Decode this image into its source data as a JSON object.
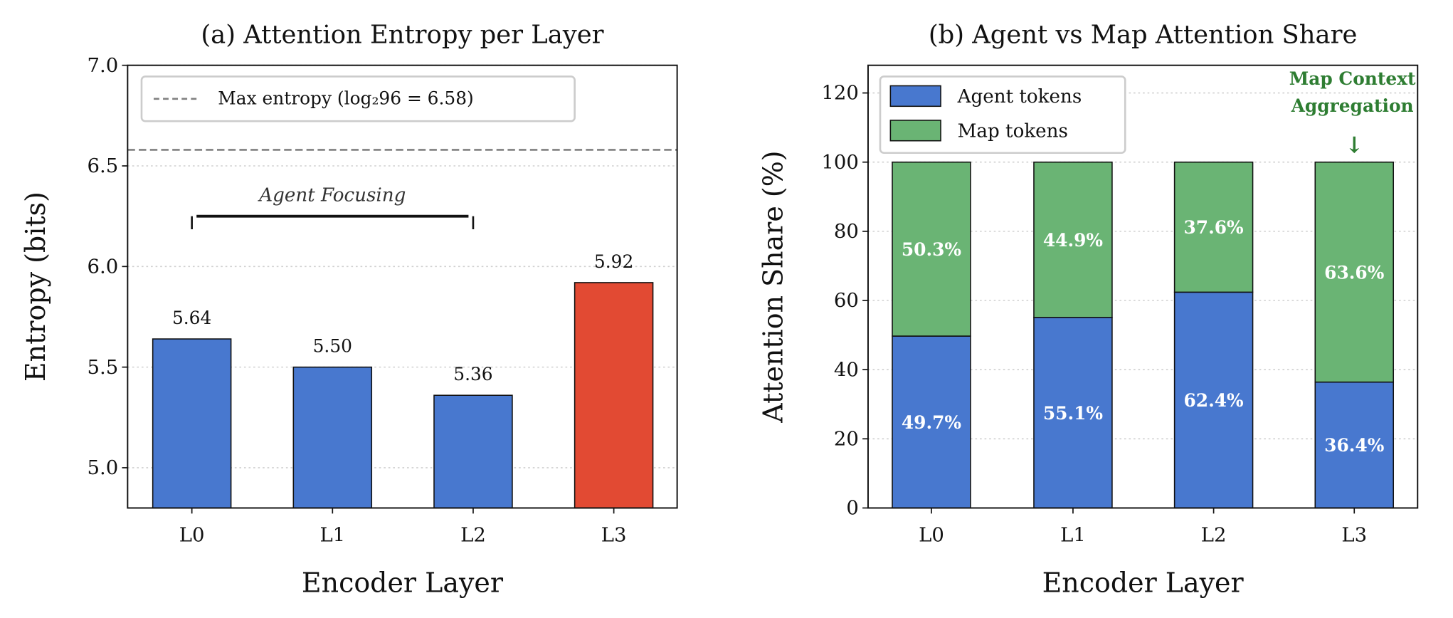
{
  "chart_data": [
    {
      "type": "bar",
      "title": "(a) Attention Entropy per Layer",
      "xlabel": "Encoder Layer",
      "ylabel": "Entropy (bits)",
      "categories": [
        "L0",
        "L1",
        "L2",
        "L3"
      ],
      "values": [
        5.64,
        5.5,
        5.36,
        5.92
      ],
      "data_labels": [
        "5.64",
        "5.50",
        "5.36",
        "5.92"
      ],
      "bar_colors": [
        "#4878cf",
        "#4878cf",
        "#4878cf",
        "#e24a33"
      ],
      "ylim": [
        4.8,
        7.0
      ],
      "yticks": [
        5.0,
        5.5,
        6.0,
        6.5,
        7.0
      ],
      "ytick_labels": [
        "5.0",
        "5.5",
        "6.0",
        "6.5",
        "7.0"
      ],
      "grid": "y dotted",
      "reference_line": {
        "value": 6.58,
        "color": "#808080",
        "style": "dashed",
        "label": "Max entropy (log₂96 = 6.58)"
      },
      "legend": "top-left",
      "annotation": {
        "text": "Agent Focusing",
        "from": "L0",
        "to": "L2",
        "y": 6.25
      }
    },
    {
      "type": "stacked-bar",
      "title": "(b) Agent vs Map Attention Share",
      "xlabel": "Encoder Layer",
      "ylabel": "Attention Share (%)",
      "categories": [
        "L0",
        "L1",
        "L2",
        "L3"
      ],
      "series": [
        {
          "name": "Agent tokens",
          "color": "#4878cf",
          "values": [
            49.7,
            55.1,
            62.4,
            36.4
          ],
          "labels": [
            "49.7%",
            "55.1%",
            "62.4%",
            "36.4%"
          ]
        },
        {
          "name": "Map tokens",
          "color": "#6ab474",
          "values": [
            50.3,
            44.9,
            37.6,
            63.6
          ],
          "labels": [
            "50.3%",
            "44.9%",
            "37.6%",
            "63.6%"
          ]
        }
      ],
      "ylim": [
        0,
        128
      ],
      "yticks": [
        0,
        20,
        40,
        60,
        80,
        100,
        120
      ],
      "ytick_labels": [
        "0",
        "20",
        "40",
        "60",
        "80",
        "100",
        "120"
      ],
      "grid": "y dotted",
      "legend": "top-left",
      "annotation": {
        "lines": [
          "Map Context",
          "Aggregation"
        ],
        "arrow": "↓",
        "target": "L3",
        "color": "#2e7d32"
      }
    }
  ]
}
